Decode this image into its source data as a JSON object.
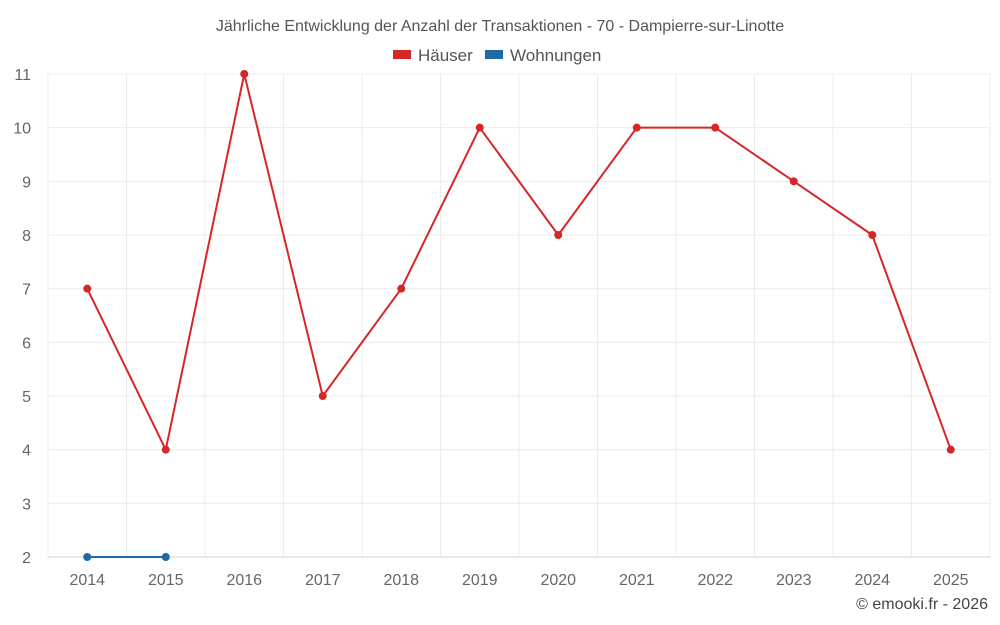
{
  "chart_data": {
    "type": "line",
    "title": "Jährliche Entwicklung der Anzahl der Transaktionen - 70 - Dampierre-sur-Linotte",
    "categories": [
      "2014",
      "2015",
      "2016",
      "2017",
      "2018",
      "2019",
      "2020",
      "2021",
      "2022",
      "2023",
      "2024",
      "2025"
    ],
    "y_ticks": [
      "2",
      "3",
      "4",
      "5",
      "6",
      "7",
      "8",
      "9",
      "10",
      "11"
    ],
    "ylim": [
      2,
      11
    ],
    "grid": true,
    "legend_position": "top-center",
    "series": [
      {
        "name": "Häuser",
        "color": "#d62728",
        "values": [
          7,
          4,
          11,
          5,
          7,
          10,
          8,
          10,
          10,
          9,
          8,
          4
        ]
      },
      {
        "name": "Wohnungen",
        "color": "#1f6aa5",
        "values": [
          2,
          2,
          null,
          null,
          null,
          null,
          null,
          null,
          null,
          null,
          null,
          null
        ]
      }
    ]
  },
  "credit": "© emooki.fr - 2026"
}
